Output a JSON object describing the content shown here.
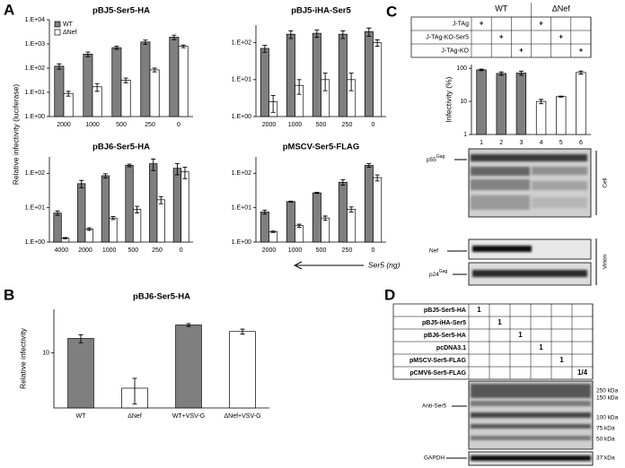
{
  "panel_letters": [
    "A",
    "B",
    "C",
    "D"
  ],
  "panel_a": {
    "y_label": "Relative infectivity (luciferase)",
    "x_label": "Ser5 (ng)"
  },
  "chart_data": [
    {
      "type": "bar",
      "log": true,
      "title": "pBJ5-Ser5-HA",
      "legend": "upper left",
      "categories": [
        "2000",
        "1000",
        "500",
        "250",
        "0"
      ],
      "series": [
        {
          "name": "WT",
          "color": "#7f7f7f",
          "values": [
            120,
            380,
            700,
            1200,
            1900
          ],
          "errors": [
            30,
            80,
            100,
            250,
            400
          ]
        },
        {
          "name": "ΔNef",
          "color": "#ffffff",
          "values": [
            9,
            17,
            32,
            85,
            800
          ],
          "errors": [
            2,
            6,
            7,
            15,
            100
          ]
        }
      ],
      "ylim": [
        1,
        10000
      ],
      "yticks": [
        {
          "value": 1,
          "label": "1.E+00"
        },
        {
          "value": 10,
          "label": "1.E+01"
        },
        {
          "value": 100,
          "label": "1.E+02"
        },
        {
          "value": 1000,
          "label": "1.E+03"
        },
        {
          "value": 10000,
          "label": "1.E+04"
        }
      ]
    },
    {
      "type": "bar",
      "log": true,
      "title": "pBJ5-iHA-Ser5",
      "categories": [
        "2000",
        "1000",
        "500",
        "250",
        "0"
      ],
      "series": [
        {
          "color": "#7f7f7f",
          "values": [
            70,
            170,
            180,
            170,
            200
          ],
          "errors": [
            15,
            40,
            40,
            40,
            50
          ]
        },
        {
          "color": "#ffffff",
          "values": [
            2.5,
            7,
            10,
            10,
            100
          ],
          "errors": [
            1.2,
            3,
            5,
            5,
            20
          ]
        }
      ],
      "ylim": [
        1,
        300
      ],
      "yticks": [
        {
          "value": 1,
          "label": "1.E+00"
        },
        {
          "value": 10,
          "label": "1.E+01"
        },
        {
          "value": 100,
          "label": "1.E+02"
        }
      ]
    },
    {
      "type": "bar",
      "log": true,
      "title": "pBJ6-Ser5-HA",
      "categories": [
        "4000",
        "2000",
        "1000",
        "500",
        "250",
        "0"
      ],
      "series": [
        {
          "color": "#7f7f7f",
          "values": [
            7,
            50,
            85,
            170,
            190,
            140
          ],
          "errors": [
            1,
            12,
            12,
            15,
            70,
            50
          ]
        },
        {
          "color": "#ffffff",
          "values": [
            1.3,
            2.4,
            5,
            9,
            17,
            110
          ],
          "errors": [
            0.05,
            0.2,
            0.5,
            2,
            4,
            40
          ]
        }
      ],
      "ylim": [
        1,
        300
      ],
      "yticks": [
        {
          "value": 1,
          "label": "1.E+00"
        },
        {
          "value": 10,
          "label": "1.E+01"
        },
        {
          "value": 100,
          "label": "1.E+02"
        }
      ]
    },
    {
      "type": "bar",
      "log": true,
      "title": "pMSCV-Ser5-FLAG",
      "categories": [
        "2000",
        "1000",
        "500",
        "250",
        "0"
      ],
      "series": [
        {
          "color": "#7f7f7f",
          "values": [
            7.5,
            15,
            27,
            55,
            170
          ],
          "errors": [
            1,
            0.5,
            1,
            10,
            20
          ]
        },
        {
          "color": "#ffffff",
          "values": [
            2,
            3,
            5,
            9,
            75
          ],
          "errors": [
            0.1,
            0.3,
            0.7,
            1.5,
            15
          ]
        }
      ],
      "ylim": [
        1,
        300
      ],
      "yticks": [
        {
          "value": 1,
          "label": "1.E+00"
        },
        {
          "value": 10,
          "label": "1.E+01"
        },
        {
          "value": 100,
          "label": "1.E+02"
        }
      ]
    },
    {
      "type": "bar",
      "log": true,
      "title": "pBJ6-Ser5-HA",
      "ylabel": "Relative infectivity",
      "categories": [
        "WT",
        "ΔNef",
        "WT+VSV-G",
        "ΔNef+VSV-G"
      ],
      "values": [
        17,
        2.7,
        28,
        22
      ],
      "errors": [
        2.5,
        1.2,
        1.5,
        2
      ],
      "colors": [
        "#7f7f7f",
        "#ffffff",
        "#7f7f7f",
        "#ffffff"
      ],
      "ylim": [
        1.3,
        50
      ],
      "yticks": [
        10
      ]
    },
    {
      "type": "bar",
      "log": true,
      "ylabel": "Infectivity (%)",
      "categories": [
        "1",
        "2",
        "3",
        "4",
        "5",
        "6"
      ],
      "values": [
        90,
        70,
        72,
        10,
        14,
        75
      ],
      "errors": [
        5,
        8,
        10,
        1.5,
        0.5,
        8
      ],
      "colors": [
        "#7f7f7f",
        "#7f7f7f",
        "#7f7f7f",
        "#ffffff",
        "#ffffff",
        "#ffffff"
      ],
      "ylim": [
        1,
        130
      ],
      "yticks": [
        1,
        10,
        100
      ]
    }
  ],
  "panel_c": {
    "groups": [
      "WT",
      "ΔNef"
    ],
    "rows": [
      {
        "label": "J-TAg",
        "cells": [
          "+",
          null,
          null,
          "+",
          null,
          null
        ]
      },
      {
        "label": "J-TAg-KO-Ser5",
        "cells": [
          null,
          "+",
          null,
          null,
          "+",
          null
        ]
      },
      {
        "label": "J-TAg-KO",
        "cells": [
          null,
          null,
          "+",
          null,
          null,
          "+"
        ]
      }
    ],
    "blots": {
      "p55": {
        "name": "p55",
        "sup": "Gag"
      },
      "nef": "Nef",
      "p24": {
        "name": "p24",
        "sup": "Gag"
      },
      "cell": "Cell",
      "virion": "Virion"
    }
  },
  "panel_d": {
    "rows": [
      {
        "label": "pBJ5-Ser5-HA",
        "cells": [
          "1",
          null,
          null,
          null,
          null,
          null
        ]
      },
      {
        "label": "pBJ5-iHA-Ser5",
        "cells": [
          null,
          "1",
          null,
          null,
          null,
          null
        ]
      },
      {
        "label": "pBJ6-Ser5-HA",
        "cells": [
          null,
          null,
          "1",
          null,
          null,
          null
        ]
      },
      {
        "label": "pcDNA3.1",
        "cells": [
          null,
          null,
          null,
          "1",
          null,
          null
        ]
      },
      {
        "label": "pMSCV-Ser5-FLAG",
        "cells": [
          null,
          null,
          null,
          null,
          "1",
          null
        ]
      },
      {
        "label": "pCMV6-Ser5-FLAG",
        "cells": [
          null,
          null,
          null,
          null,
          null,
          "1/4"
        ]
      }
    ],
    "anti": "Anti-Ser5",
    "gapdh": "GAPDH",
    "markers": [
      "250 kDa",
      "150 kDa",
      "100 kDa",
      "75 kDa",
      "50 kDa"
    ],
    "gapdh_marker": "37 kDa"
  }
}
